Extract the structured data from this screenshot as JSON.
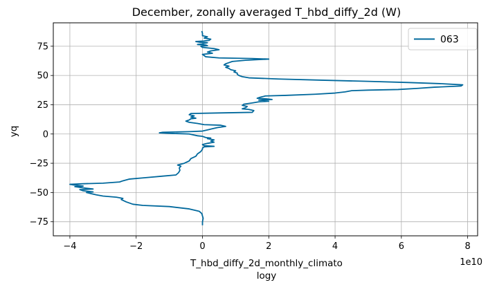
{
  "chart_data": {
    "type": "line",
    "title": "December, zonally averaged T_hbd_diffy_2d (W)",
    "xlabel_line1": "T_hbd_diffy_2d_monthly_climato",
    "xlabel_line2": "logy",
    "ylabel": "yq",
    "x_offset_text": "1e10",
    "x_scale": 10000000000,
    "xlim": [
      -4.5,
      8.3
    ],
    "ylim": [
      -87,
      95
    ],
    "xticks": [
      -4,
      -2,
      0,
      2,
      4,
      6,
      8
    ],
    "yticks": [
      -75,
      -50,
      -25,
      0,
      25,
      50,
      75
    ],
    "xtick_labels": [
      "−4",
      "−2",
      "0",
      "2",
      "4",
      "6",
      "8"
    ],
    "ytick_labels": [
      "−75",
      "−50",
      "−25",
      "0",
      "25",
      "50",
      "75"
    ],
    "grid": true,
    "legend_position": "top-right",
    "series": [
      {
        "name": "063",
        "color": "#00689c",
        "points": [
          [
            0.0,
            -78
          ],
          [
            0.0,
            -75
          ],
          [
            0.02,
            -72
          ],
          [
            0.0,
            -70
          ],
          [
            -0.02,
            -68
          ],
          [
            -0.1,
            -66
          ],
          [
            -0.4,
            -64
          ],
          [
            -1.0,
            -62
          ],
          [
            -1.8,
            -61
          ],
          [
            -2.1,
            -60
          ],
          [
            -2.3,
            -58
          ],
          [
            -2.45,
            -56
          ],
          [
            -2.4,
            -55
          ],
          [
            -2.6,
            -54
          ],
          [
            -3.0,
            -53
          ],
          [
            -3.2,
            -52
          ],
          [
            -3.35,
            -51
          ],
          [
            -3.5,
            -50
          ],
          [
            -3.3,
            -49.5
          ],
          [
            -3.6,
            -48.5
          ],
          [
            -3.7,
            -47.5
          ],
          [
            -3.3,
            -47
          ],
          [
            -3.6,
            -46
          ],
          [
            -3.85,
            -45
          ],
          [
            -3.6,
            -44.5
          ],
          [
            -3.9,
            -43.5
          ],
          [
            -4.0,
            -43
          ],
          [
            -3.6,
            -42.5
          ],
          [
            -3.0,
            -42
          ],
          [
            -2.5,
            -41
          ],
          [
            -2.4,
            -40
          ],
          [
            -2.2,
            -38.5
          ],
          [
            -1.8,
            -37.5
          ],
          [
            -1.2,
            -36
          ],
          [
            -0.8,
            -35
          ],
          [
            -0.72,
            -33
          ],
          [
            -0.68,
            -31
          ],
          [
            -0.7,
            -29
          ],
          [
            -0.65,
            -27.5
          ],
          [
            -0.75,
            -26.5
          ],
          [
            -0.55,
            -25
          ],
          [
            -0.4,
            -23
          ],
          [
            -0.35,
            -21
          ],
          [
            -0.2,
            -19
          ],
          [
            -0.15,
            -17
          ],
          [
            -0.05,
            -15
          ],
          [
            0.0,
            -13
          ],
          [
            0.0,
            -12
          ],
          [
            0.05,
            -11
          ],
          [
            0.35,
            -10.5
          ],
          [
            0.05,
            -10
          ],
          [
            0.0,
            -9
          ],
          [
            0.15,
            -8
          ],
          [
            0.35,
            -7
          ],
          [
            0.25,
            -6
          ],
          [
            0.35,
            -5
          ],
          [
            0.15,
            -4
          ],
          [
            0.25,
            -3.5
          ],
          [
            0.1,
            -3
          ],
          [
            0.0,
            -2
          ],
          [
            -0.15,
            -1.5
          ],
          [
            -0.4,
            0
          ],
          [
            -0.9,
            0.5
          ],
          [
            -1.3,
            1
          ],
          [
            -1.2,
            1.5
          ],
          [
            -0.4,
            2
          ],
          [
            0.0,
            2.5
          ],
          [
            0.15,
            3.5
          ],
          [
            0.3,
            4.5
          ],
          [
            0.45,
            5.5
          ],
          [
            0.7,
            6.5
          ],
          [
            0.55,
            7.5
          ],
          [
            0.05,
            8
          ],
          [
            -0.15,
            9
          ],
          [
            -0.4,
            10
          ],
          [
            -0.5,
            11
          ],
          [
            -0.4,
            12
          ],
          [
            -0.35,
            13
          ],
          [
            -0.2,
            13.5
          ],
          [
            -0.35,
            14.5
          ],
          [
            -0.25,
            15.5
          ],
          [
            -0.4,
            16.5
          ],
          [
            -0.35,
            17.5
          ],
          [
            0.5,
            18
          ],
          [
            1.5,
            18.5
          ],
          [
            1.55,
            20
          ],
          [
            1.4,
            21
          ],
          [
            1.2,
            21.5
          ],
          [
            1.3,
            22.5
          ],
          [
            1.35,
            23.5
          ],
          [
            1.2,
            24.5
          ],
          [
            1.25,
            25.5
          ],
          [
            1.5,
            26.5
          ],
          [
            1.7,
            27.5
          ],
          [
            2.0,
            28
          ],
          [
            1.9,
            28.5
          ],
          [
            1.7,
            29
          ],
          [
            2.1,
            29.5
          ],
          [
            1.95,
            30
          ],
          [
            1.65,
            30.5
          ],
          [
            1.75,
            31.5
          ],
          [
            1.9,
            32.5
          ],
          [
            2.5,
            33
          ],
          [
            3.4,
            34
          ],
          [
            4.0,
            35
          ],
          [
            4.3,
            36
          ],
          [
            4.5,
            37
          ],
          [
            5.0,
            37.5
          ],
          [
            5.9,
            38
          ],
          [
            6.5,
            39
          ],
          [
            7.0,
            40
          ],
          [
            7.8,
            41
          ],
          [
            7.85,
            42
          ],
          [
            7.2,
            43
          ],
          [
            6.2,
            44
          ],
          [
            5.0,
            45
          ],
          [
            3.6,
            46
          ],
          [
            2.3,
            47
          ],
          [
            1.4,
            48
          ],
          [
            1.2,
            49
          ],
          [
            1.1,
            50
          ],
          [
            1.05,
            51
          ],
          [
            1.05,
            52
          ],
          [
            0.95,
            53
          ],
          [
            1.0,
            54
          ],
          [
            0.85,
            55
          ],
          [
            0.8,
            56
          ],
          [
            0.7,
            57
          ],
          [
            0.8,
            58
          ],
          [
            0.65,
            59
          ],
          [
            0.7,
            60
          ],
          [
            0.8,
            61
          ],
          [
            0.9,
            62
          ],
          [
            1.3,
            63
          ],
          [
            2.0,
            64
          ],
          [
            1.5,
            64.5
          ],
          [
            0.5,
            65
          ],
          [
            0.1,
            66
          ],
          [
            0.05,
            67
          ],
          [
            0.0,
            68
          ],
          [
            0.3,
            69
          ],
          [
            0.15,
            70
          ],
          [
            0.25,
            71
          ],
          [
            0.5,
            72
          ],
          [
            0.35,
            73
          ],
          [
            0.0,
            74
          ],
          [
            -0.05,
            75
          ],
          [
            0.15,
            75.5
          ],
          [
            0.1,
            76
          ],
          [
            -0.15,
            76.5
          ],
          [
            0.0,
            77
          ],
          [
            0.05,
            77.5
          ],
          [
            0.15,
            78
          ],
          [
            -0.1,
            78.5
          ],
          [
            -0.2,
            79
          ],
          [
            0.05,
            79.5
          ],
          [
            0.2,
            80
          ],
          [
            0.25,
            81
          ],
          [
            0.05,
            82
          ],
          [
            0.15,
            83
          ],
          [
            0.0,
            84
          ],
          [
            0.0,
            86
          ],
          [
            -0.02,
            88
          ]
        ]
      }
    ]
  }
}
